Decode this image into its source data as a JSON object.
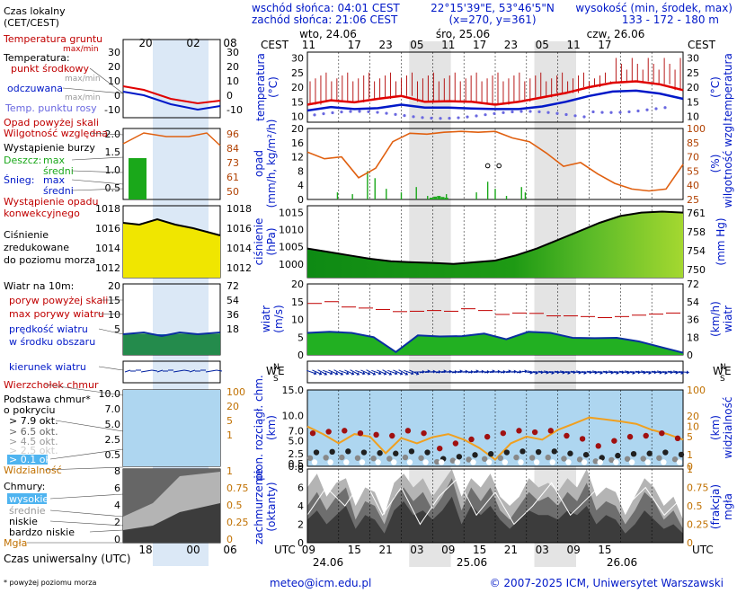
{
  "header": {
    "sunrise": "wschód słońca: 04:01 CEST",
    "sunset": "zachód słońca: 21:06 CEST",
    "coords": "22°15'39\"E, 53°46'5\"N",
    "grid": "(x=270, y=361)",
    "altitude_label": "wysokość (min, środek, max)",
    "altitude_values": "133 - 172 - 180 m"
  },
  "legend": {
    "time_zone_label": "Czas lokalny",
    "time_zone_sub": "(CET/CEST)",
    "legend_hours": [
      "20",
      "02",
      "08"
    ],
    "legend_utc_hours": [
      "18",
      "00",
      "06"
    ],
    "utc_label": "Czas uniwersalny (UTC)",
    "temp_ground": "Temperatura gruntu",
    "temp_ground_sub": "max/min",
    "temperature": "Temperatura:",
    "mid_point": "punkt środkowy",
    "max_min": "max/min",
    "feels_like": "odczuwana",
    "feels_max_min": "max/min",
    "dew_point": "Temp. punktu rosy",
    "rain_threshold": "Opad powyżej skali",
    "humidity": "Wilgotność względna",
    "storm": "Wystąpienie burzy",
    "rain": "Deszcz:",
    "rain_max": "max",
    "rain_mean": "średni",
    "snow": "Śnieg:",
    "snow_max": "max",
    "snow_mean": "średni",
    "convective": "Wystąpienie opadu",
    "convective2": "konwekcyjnego",
    "pressure1": "Ciśnienie",
    "pressure2": "zredukowane",
    "pressure3": "do poziomu morza",
    "wind10": "Wiatr na 10m:",
    "gust_scale": "poryw powyżej skali",
    "gust_max": "max porywy wiatru",
    "wind_speed1": "prędkość wiatru",
    "wind_speed2": "w środku obszaru",
    "wind_dir": "kierunek wiatru",
    "cloud_top": "Wierzchołek chmur",
    "cloud_base1": "Podstawa chmur*",
    "cloud_base2": "o pokryciu",
    "okt79": "> 7.9 okt.",
    "okt65": "> 6.5 okt.",
    "okt45": "> 4.5 okt.",
    "okt25": "> 2.5 okt.",
    "okt01": "> 0.1 okt.",
    "visibility": "Widzialność",
    "clouds": "Chmury:",
    "high": "wysokie",
    "middle": "średnie",
    "low": "niskie",
    "very_low": "bardzo niskie",
    "fog": "Mgła",
    "footnote": "* powyżej poziomu morza"
  },
  "axes": {
    "cest": "CEST",
    "utc": "UTC",
    "dates_top": [
      "wto, 24.06",
      "śro, 25.06",
      "czw, 26.06"
    ],
    "dates_bottom": [
      "24.06",
      "25.06",
      "26.06"
    ],
    "top_hours": [
      "11",
      "17",
      "23",
      "05",
      "11",
      "17",
      "23",
      "05",
      "11",
      "17"
    ],
    "bottom_hours": [
      "09",
      "15",
      "21",
      "03",
      "09",
      "15",
      "21",
      "03",
      "09",
      "15"
    ],
    "temp_label": "temperatura",
    "temp_unit": "(°C)",
    "temp_ticks": [
      30,
      25,
      20,
      15,
      10
    ],
    "precip_label": "opad",
    "precip_unit": "(mm/h, kg/m²/h)",
    "precip_ticks": [
      20,
      16,
      12,
      8,
      4,
      0
    ],
    "humidity_label": "wilgotność wzgl.",
    "humidity_unit": "(%)",
    "humidity_ticks": [
      100,
      85,
      70,
      55,
      40,
      25
    ],
    "pressure_label": "ciśnienie",
    "pressure_unit": "(hPa)",
    "pressure_ticks": [
      1015,
      1010,
      1005,
      1000
    ],
    "pressure_mmhg_label": "(mm Hg)",
    "pressure_mmhg_ticks": [
      761,
      758,
      754,
      750
    ],
    "wind_label": "wiatr",
    "wind_unit": "(m/s)",
    "wind_ticks": [
      20,
      15,
      10,
      5,
      0
    ],
    "wind_kmh_label": "wiatr",
    "wind_kmh_unit": "(km/h)",
    "wind_kmh_ticks": [
      72,
      54,
      36,
      18,
      0
    ],
    "compass": [
      "N",
      "W",
      "E",
      "S"
    ],
    "cloud_base_label": "pion. rozciągł. chm.",
    "cloud_base_unit": "(km)",
    "cloud_ticks": [
      "15.0",
      "10.0",
      "7.0",
      "5.0",
      "2.5",
      "0.5",
      "0.0"
    ],
    "vis_label": "widzialność",
    "vis_unit": "(km)",
    "vis_ticks": [
      100,
      20,
      10,
      5,
      1,
      0
    ],
    "cover_label": "zachmurzenie",
    "cover_unit": "(oktanty)",
    "cover_ticks": [
      8,
      6,
      4,
      2,
      0
    ],
    "frac_label": "(frakcja)",
    "frac_label2": "mgła",
    "frac_ticks": [
      "1",
      "0.75",
      "0.5",
      "0.25",
      "0"
    ],
    "legend_temp_ticks": [
      30,
      20,
      10,
      0,
      -10
    ],
    "legend_temp_right": [
      30,
      20,
      10,
      0,
      -10
    ],
    "legend_precip_ticks": [
      "2.0",
      "1.5",
      "1.0",
      "0.5"
    ],
    "legend_hum_ticks": [
      96,
      84,
      73,
      61,
      50
    ],
    "legend_pres_ticks": [
      1018,
      1016,
      1014,
      1012
    ],
    "legend_wind_ticks": [
      20,
      15,
      10,
      5
    ],
    "legend_wind_right": [
      72,
      54,
      36,
      18
    ],
    "legend_cloud_ticks": [
      "10.0",
      "7.0",
      "5.0",
      "2.5",
      "0.5"
    ],
    "legend_vis_ticks": [
      100,
      20,
      5,
      1
    ],
    "legend_cover_ticks": [
      8,
      6,
      4,
      2,
      0
    ],
    "legend_cover_right": [
      "1",
      "0.75",
      "0.5",
      "0.25",
      "0"
    ]
  },
  "footer": {
    "email": "meteo@icm.edu.pl",
    "copyright": "© 2007-2025 ICM, Uniwersytet Warszawski"
  },
  "colors": {
    "temperature": "#e00000",
    "feels_like": "#0018c8",
    "dew_point": "#6a68e0",
    "humidity": "#e06010",
    "rain": "#1aa81a",
    "pressure_fill": "#33a81a",
    "wind_fill": "#22b022",
    "wind_line": "#0a2ea0",
    "visibility": "#f0a020",
    "night_band": "#e4e4e4",
    "cloud_bg": "#aed6f0"
  },
  "chart_data": {
    "type": "line",
    "time_hours_utc": [
      0,
      6,
      12,
      18,
      24,
      30,
      36,
      42,
      48,
      54,
      60,
      66,
      72
    ],
    "series": [
      {
        "name": "punkt środkowy",
        "panel": "temperatura",
        "values": [
          14,
          15.5,
          14.8,
          16,
          17,
          15,
          15.2,
          15,
          14,
          15,
          16.5,
          18,
          20,
          21.5,
          22,
          21,
          19
        ]
      },
      {
        "name": "odczuwana",
        "panel": "temperatura",
        "values": [
          12,
          13.2,
          12.5,
          12.8,
          14,
          13,
          13,
          12.7,
          12.5,
          12.5,
          13.4,
          15,
          17,
          18.5,
          18.8,
          17.8,
          16
        ]
      },
      {
        "name": "Wilgotność względna",
        "panel": "wilgotność wzgl.",
        "values": [
          75,
          68,
          70,
          48,
          58,
          86,
          95,
          94,
          96,
          97,
          96,
          97,
          90,
          86,
          74,
          60,
          64,
          52,
          42,
          36,
          34,
          36,
          62
        ]
      },
      {
        "name": "Ciśnienie zredukowane do poziomu morza",
        "panel": "ciśnienie",
        "values": [
          1004.5,
          1003.5,
          1002.5,
          1001.5,
          1000.8,
          1000.5,
          1000.3,
          1000,
          1000.5,
          1001,
          1002.5,
          1004.5,
          1007,
          1009.5,
          1012,
          1014,
          1015,
          1015.3,
          1015
        ]
      },
      {
        "name": "prędkość wiatru",
        "panel": "wiatr",
        "values": [
          6.2,
          6.5,
          6.2,
          5,
          0.8,
          5.5,
          5.2,
          5.3,
          6,
          4.4,
          6.5,
          6.2,
          4.8,
          4.7,
          4.8,
          3.8,
          2.2,
          0.6
        ]
      },
      {
        "name": "max porywy wiatru",
        "panel": "wiatr",
        "values": [
          14.5,
          15,
          13.5,
          13.2,
          12.8,
          12.2,
          12.3,
          12.5,
          12.3,
          13,
          12.5,
          11.4,
          11.8,
          11.7,
          11,
          11,
          10.8,
          10.5,
          10.8,
          11.2,
          11.5,
          11.8
        ]
      },
      {
        "name": "Widzialność",
        "panel": "widzialność",
        "values": [
          10,
          6,
          3,
          6,
          5,
          1.2,
          4.5,
          3,
          4.8,
          6,
          4,
          2,
          0.5,
          3,
          5,
          4,
          8,
          12,
          18,
          16,
          14,
          12,
          8,
          6,
          4
        ]
      },
      {
        "name": "Podstawa chmur > 7.9 okt.",
        "panel": "pion. rozciągł. chm.",
        "values": [
          6.5,
          6.8,
          7,
          6.5,
          6.2,
          6,
          7,
          6.5,
          3.5,
          4.5,
          5.3,
          5.8,
          6.5,
          7,
          6.7,
          7,
          6,
          5.4,
          4,
          5,
          5.8,
          6,
          6.5,
          5.5
        ]
      }
    ]
  }
}
